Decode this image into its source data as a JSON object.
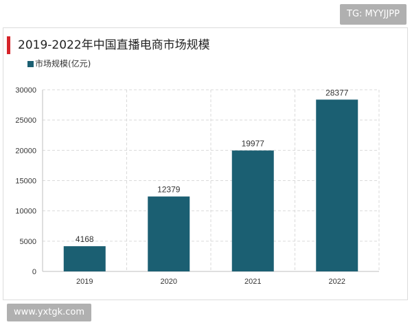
{
  "watermarks": {
    "top": "TG: MYYJJPP",
    "bottom": "www.yxtgk.com"
  },
  "colors": {
    "bar": "#1b5f72",
    "title_accent": "#d6242a",
    "grid": "#d9d9d9"
  },
  "chart_data": {
    "type": "bar",
    "title": "2019-2022年中国直播电商市场规模",
    "categories": [
      "2019",
      "2020",
      "2021",
      "2022"
    ],
    "series": [
      {
        "name": "市场规模(亿元)",
        "values": [
          4168,
          12379,
          19977,
          28377
        ]
      }
    ],
    "data_labels": [
      "4168",
      "12379",
      "19977",
      "28377"
    ],
    "y_ticks": [
      "0",
      "5000",
      "10000",
      "15000",
      "20000",
      "25000",
      "30000"
    ],
    "xlabel": "",
    "ylabel": "",
    "ylim": [
      0,
      30000
    ],
    "grid": true,
    "legend_position": "top-left"
  }
}
